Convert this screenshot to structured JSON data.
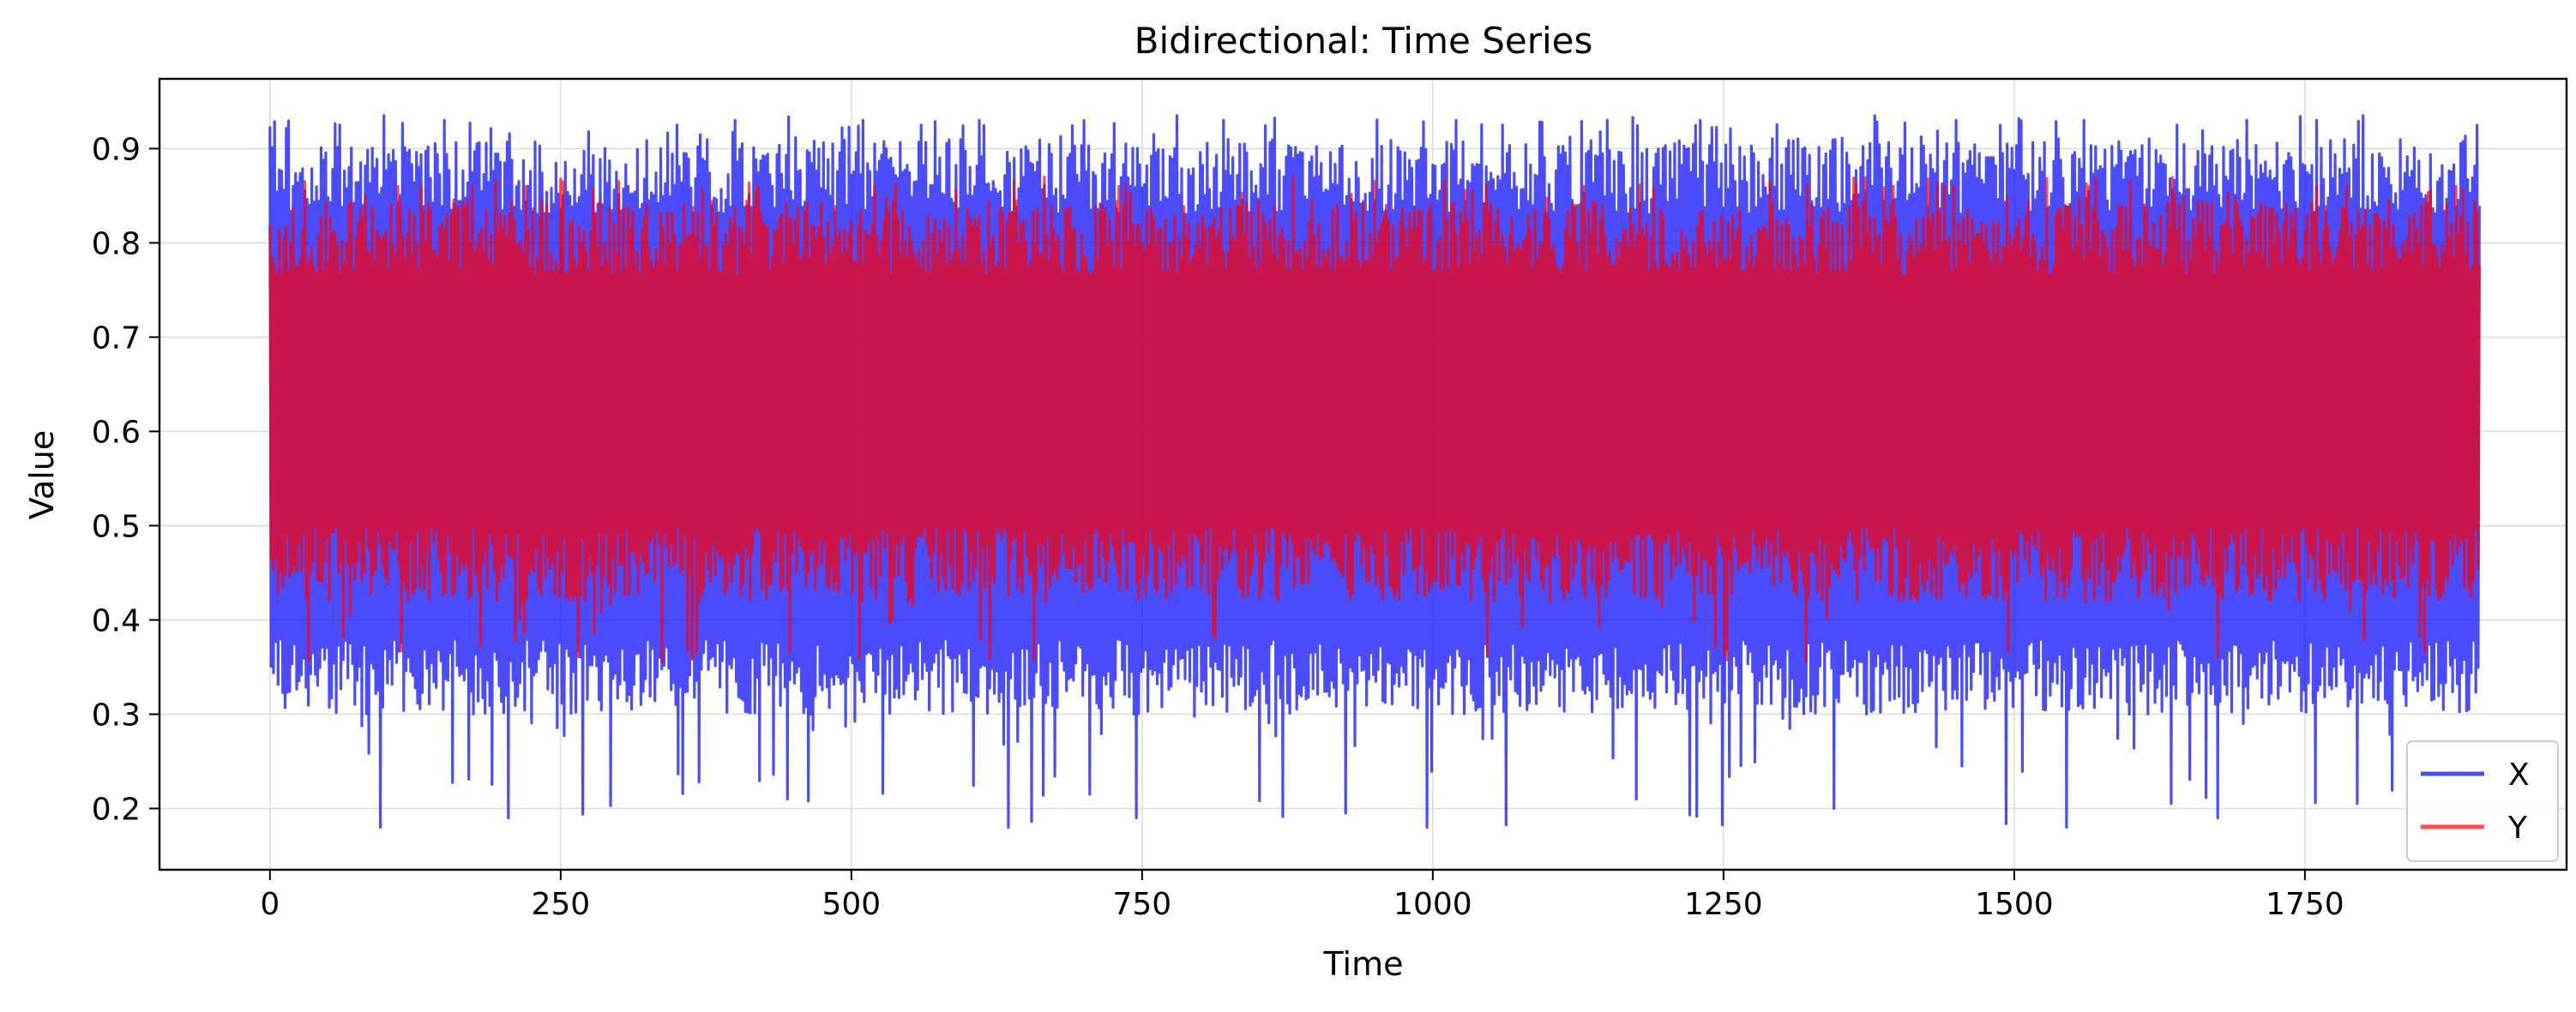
{
  "chart_data": {
    "type": "line",
    "title": "Bidirectional: Time Series",
    "xlabel": "Time",
    "ylabel": "Value",
    "xlim": [
      -95,
      1975
    ],
    "ylim": [
      0.135,
      0.974
    ],
    "x_ticks": [
      0,
      250,
      500,
      750,
      1000,
      1250,
      1500,
      1750
    ],
    "x_tick_labels": [
      "0",
      "250",
      "500",
      "750",
      "1000",
      "1250",
      "1500",
      "1750"
    ],
    "y_ticks": [
      0.2,
      0.3,
      0.4,
      0.5,
      0.6,
      0.7,
      0.8,
      0.9
    ],
    "y_tick_labels": [
      "0.2",
      "0.3",
      "0.4",
      "0.5",
      "0.6",
      "0.7",
      "0.8",
      "0.9"
    ],
    "grid": true,
    "legend_position": "lower-right",
    "x_range": [
      0,
      1900
    ],
    "series": [
      {
        "name": "X",
        "color": "#0000ff",
        "opacity": 0.7,
        "band": {
          "typical_min": 0.3,
          "typical_max": 0.91,
          "min": 0.175,
          "max": 0.935
        },
        "spikes_low": [
          [
            12,
            0.205
          ],
          [
            48,
            0.21
          ],
          [
            95,
            0.18
          ],
          [
            130,
            0.2
          ],
          [
            150,
            0.185
          ],
          [
            170,
            0.19
          ],
          [
            205,
            0.19
          ],
          [
            240,
            0.22
          ],
          [
            270,
            0.215
          ],
          [
            310,
            0.185
          ],
          [
            350,
            0.19
          ],
          [
            390,
            0.21
          ],
          [
            445,
            0.21
          ],
          [
            480,
            0.185
          ],
          [
            510,
            0.19
          ],
          [
            540,
            0.2
          ],
          [
            590,
            0.215
          ],
          [
            635,
            0.18
          ],
          [
            680,
            0.2
          ],
          [
            705,
            0.215
          ],
          [
            745,
            0.19
          ],
          [
            780,
            0.175
          ],
          [
            820,
            0.21
          ],
          [
            860,
            0.19
          ],
          [
            890,
            0.19
          ],
          [
            925,
            0.195
          ],
          [
            960,
            0.18
          ],
          [
            995,
            0.18
          ],
          [
            1030,
            0.2
          ],
          [
            1050,
            0.175
          ],
          [
            1090,
            0.19
          ],
          [
            1120,
            0.2
          ],
          [
            1140,
            0.19
          ],
          [
            1175,
            0.21
          ],
          [
            1220,
            0.19
          ],
          [
            1260,
            0.18
          ],
          [
            1300,
            0.18
          ],
          [
            1345,
            0.2
          ],
          [
            1380,
            0.18
          ],
          [
            1400,
            0.18
          ],
          [
            1430,
            0.19
          ],
          [
            1470,
            0.19
          ],
          [
            1500,
            0.2
          ],
          [
            1545,
            0.18
          ],
          [
            1600,
            0.19
          ],
          [
            1630,
            0.2
          ],
          [
            1675,
            0.19
          ],
          [
            1730,
            0.175
          ],
          [
            1770,
            0.19
          ],
          [
            1810,
            0.18
          ],
          [
            1850,
            0.18
          ]
        ],
        "spikes_high": [
          [
            5,
            0.92
          ],
          [
            15,
            0.925
          ],
          [
            60,
            0.925
          ],
          [
            98,
            0.935
          ],
          [
            150,
            0.93
          ],
          [
            175,
            0.93
          ],
          [
            205,
            0.93
          ],
          [
            255,
            0.925
          ],
          [
            305,
            0.93
          ],
          [
            350,
            0.925
          ],
          [
            400,
            0.93
          ],
          [
            475,
            0.93
          ],
          [
            510,
            0.93
          ],
          [
            560,
            0.925
          ],
          [
            610,
            0.93
          ],
          [
            655,
            0.93
          ],
          [
            700,
            0.93
          ],
          [
            780,
            0.935
          ],
          [
            820,
            0.93
          ],
          [
            855,
            0.93
          ],
          [
            905,
            0.93
          ],
          [
            955,
            0.935
          ],
          [
            1020,
            0.93
          ],
          [
            1060,
            0.925
          ],
          [
            1105,
            0.93
          ],
          [
            1150,
            0.93
          ],
          [
            1230,
            0.93
          ],
          [
            1305,
            0.93
          ],
          [
            1380,
            0.935
          ],
          [
            1450,
            0.93
          ],
          [
            1525,
            0.93
          ],
          [
            1560,
            0.93
          ],
          [
            1640,
            0.925
          ],
          [
            1700,
            0.93
          ],
          [
            1760,
            0.93
          ],
          [
            1800,
            0.935
          ],
          [
            1875,
            0.93
          ]
        ]
      },
      {
        "name": "Y",
        "color": "#ff0000",
        "opacity": 0.7,
        "band": {
          "typical_min": 0.42,
          "typical_max": 0.845,
          "min": 0.355,
          "max": 0.87
        },
        "spikes_low": [
          [
            70,
            0.37
          ],
          [
            180,
            0.36
          ],
          [
            260,
            0.37
          ],
          [
            330,
            0.355
          ],
          [
            470,
            0.37
          ],
          [
            560,
            0.36
          ],
          [
            720,
            0.37
          ],
          [
            860,
            0.36
          ],
          [
            980,
            0.37
          ],
          [
            1100,
            0.36
          ],
          [
            1240,
            0.37
          ],
          [
            1390,
            0.36
          ],
          [
            1530,
            0.37
          ],
          [
            1690,
            0.36
          ],
          [
            1820,
            0.36
          ]
        ],
        "spikes_high": [
          [
            30,
            0.865
          ],
          [
            110,
            0.86
          ],
          [
            220,
            0.86
          ],
          [
            300,
            0.865
          ],
          [
            420,
            0.86
          ],
          [
            520,
            0.86
          ],
          [
            640,
            0.865
          ],
          [
            730,
            0.86
          ],
          [
            880,
            0.87
          ],
          [
            1010,
            0.865
          ],
          [
            1130,
            0.86
          ],
          [
            1290,
            0.865
          ],
          [
            1440,
            0.86
          ],
          [
            1600,
            0.865
          ],
          [
            1760,
            0.86
          ],
          [
            1880,
            0.86
          ]
        ]
      }
    ]
  }
}
